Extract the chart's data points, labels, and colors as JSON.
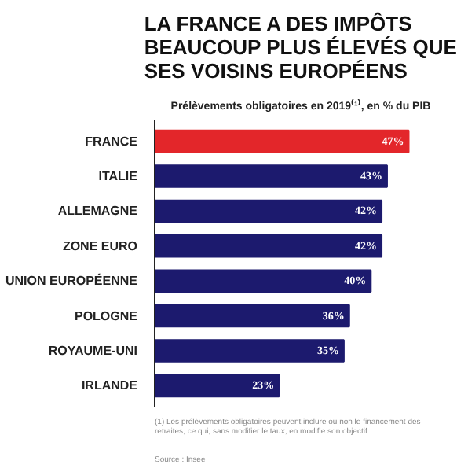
{
  "chart_data": {
    "type": "bar",
    "orientation": "horizontal",
    "title": "LA FRANCE A DES IMPÔTS BEAUCOUP PLUS ÉLEVÉS QUE SES VOISINS EUROPÉENS",
    "subtitle": "Prélèvements obligatoires en 2019⁽¹⁾, en % du PIB",
    "categories": [
      "FRANCE",
      "ITALIE",
      "ALLEMAGNE",
      "ZONE EURO",
      "UNION EUROPÉENNE",
      "POLOGNE",
      "ROYAUME-UNI",
      "IRLANDE"
    ],
    "values": [
      47,
      43,
      42,
      42,
      40,
      36,
      35,
      23
    ],
    "value_labels": [
      "47%",
      "43%",
      "42%",
      "42%",
      "40%",
      "36%",
      "35%",
      "23%"
    ],
    "colors": [
      "#e3262a",
      "#1c1a6e",
      "#1c1a6e",
      "#1c1a6e",
      "#1c1a6e",
      "#1c1a6e",
      "#1c1a6e",
      "#1c1a6e"
    ],
    "annotations": [
      "(1) Les prélèvements obligatoires peuvent inclure ou non le financement des retraites, ce qui, sans modifier le taux, en modifie son objectif",
      "Source : Insee"
    ]
  }
}
